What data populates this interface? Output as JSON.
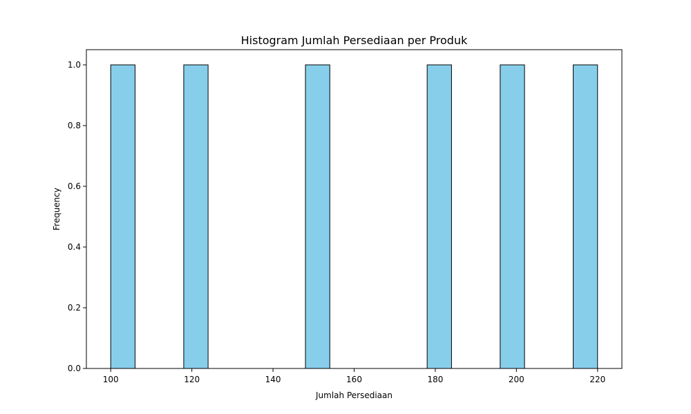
{
  "chart_data": {
    "type": "bar",
    "title": "Histogram Jumlah Persediaan per Produk",
    "xlabel": "Jumlah Persediaan",
    "ylabel": "Frequency",
    "xlim": [
      94,
      226
    ],
    "ylim": [
      0,
      1.05
    ],
    "xticks": [
      100,
      120,
      140,
      160,
      180,
      200,
      220
    ],
    "yticks": [
      0.0,
      0.2,
      0.4,
      0.6,
      0.8,
      1.0
    ],
    "grid": false,
    "bins": [
      {
        "start": 100,
        "end": 106,
        "count": 1
      },
      {
        "start": 118,
        "end": 124,
        "count": 1
      },
      {
        "start": 148,
        "end": 154,
        "count": 1
      },
      {
        "start": 178,
        "end": 184,
        "count": 1
      },
      {
        "start": 196,
        "end": 202,
        "count": 1
      },
      {
        "start": 214,
        "end": 220,
        "count": 1
      }
    ],
    "colors": {
      "bar_fill": "#87ceeb",
      "bar_edge": "#000000"
    }
  }
}
